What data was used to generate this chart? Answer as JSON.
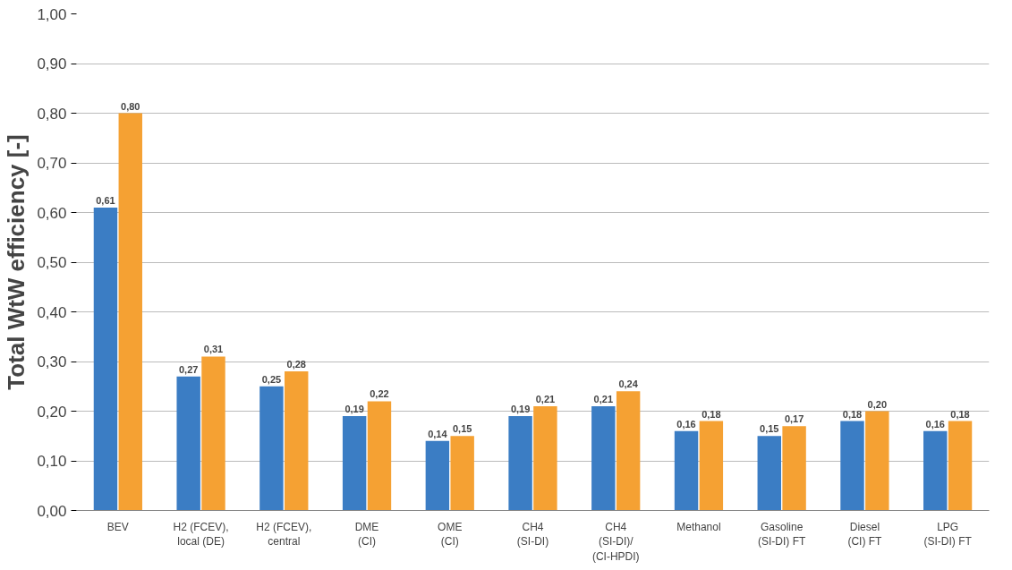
{
  "chart_data": {
    "type": "bar",
    "ylabel": "Total WtW efficiency [-]",
    "categories": [
      "BEV",
      "H2 (FCEV),\nlocal (DE)",
      "H2 (FCEV),\ncentral",
      "DME\n(CI)",
      "OME\n(CI)",
      "CH4\n(SI-DI)",
      "CH4\n(SI-DI)/\n(CI-HPDI)",
      "Methanol",
      "Gasoline\n(SI-DI) FT",
      "Diesel\n(CI) FT",
      "LPG\n(SI-DI) FT"
    ],
    "series": [
      {
        "color": "#3b7dc4",
        "values": [
          0.61,
          0.27,
          0.25,
          0.19,
          0.14,
          0.19,
          0.21,
          0.16,
          0.15,
          0.18,
          0.16
        ],
        "value_labels": [
          "0,61",
          "0,27",
          "0,25",
          "0,19",
          "0,14",
          "0,19",
          "0,21",
          "0,16",
          "0,15",
          "0,18",
          "0,16"
        ]
      },
      {
        "color": "#f5a133",
        "values": [
          0.8,
          0.31,
          0.28,
          0.22,
          0.15,
          0.21,
          0.24,
          0.18,
          0.17,
          0.2,
          0.18
        ],
        "value_labels": [
          "0,80",
          "0,31",
          "0,28",
          "0,22",
          "0,15",
          "0,21",
          "0,24",
          "0,18",
          "0,17",
          "0,20",
          "0,18"
        ]
      }
    ],
    "ylim": [
      0,
      1
    ],
    "yticks": [
      {
        "value": 0,
        "label": "0,00"
      },
      {
        "value": 0.1,
        "label": "0,10"
      },
      {
        "value": 0.2,
        "label": "0,20"
      },
      {
        "value": 0.3,
        "label": "0,30"
      },
      {
        "value": 0.4,
        "label": "0,40"
      },
      {
        "value": 0.5,
        "label": "0,50"
      },
      {
        "value": 0.6,
        "label": "0,60"
      },
      {
        "value": 0.7,
        "label": "0,70"
      },
      {
        "value": 0.8,
        "label": "0,80"
      },
      {
        "value": 0.9,
        "label": "0,90"
      },
      {
        "value": 1.0,
        "label": "1,00"
      }
    ],
    "grid": "y"
  }
}
